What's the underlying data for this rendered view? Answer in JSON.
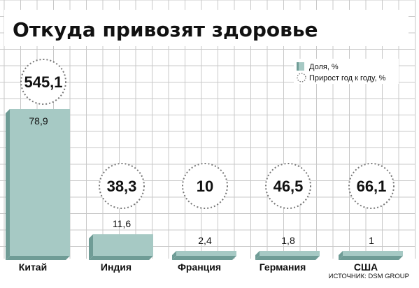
{
  "chart_data": {
    "type": "bar",
    "title": "Откуда привозят здоровье",
    "categories": [
      "Китай",
      "Индия",
      "Франция",
      "Германия",
      "США"
    ],
    "series": [
      {
        "name": "Доля, %",
        "values": [
          78.9,
          11.6,
          2.4,
          1.8,
          1
        ]
      },
      {
        "name": "Прирост год к году, %",
        "values": [
          545.1,
          38.3,
          10,
          46.5,
          66.1
        ]
      }
    ],
    "value_labels": [
      "78,9",
      "11,6",
      "2,4",
      "1,8",
      "1"
    ],
    "growth_labels": [
      "545,1",
      "38,3",
      "10",
      "46,5",
      "66,1"
    ],
    "legend_position": "top-right",
    "grid": true,
    "source": "ИСТОЧНИК: DSM GROUP",
    "colors": {
      "bar_front": "#a6c9c4",
      "bar_side": "#6f9c96",
      "grid": "#c8c8c8",
      "circle": "#777777",
      "text": "#111111"
    }
  }
}
